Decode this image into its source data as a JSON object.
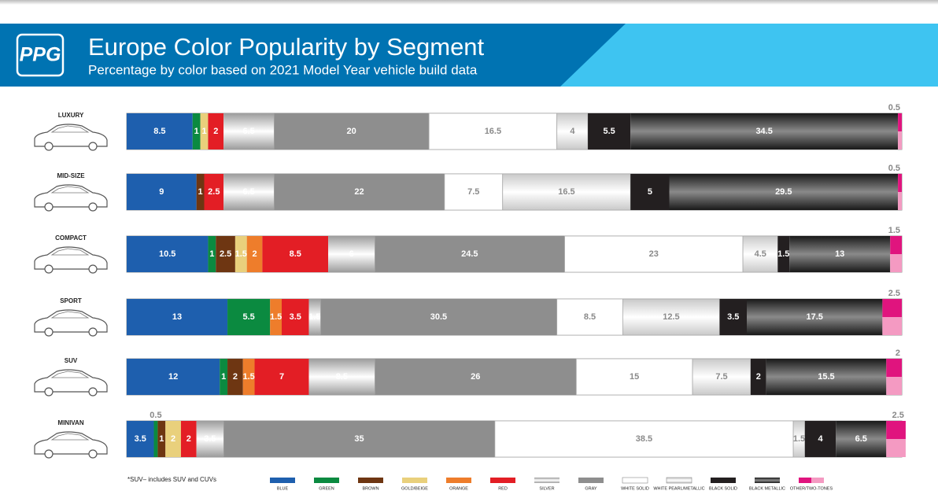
{
  "header": {
    "logo": "PPG"
  },
  "chart_data": {
    "type": "stacked-bar-horizontal",
    "title": "Europe Color Popularity by Segment",
    "subtitle": "Percentage by color based on 2021 Model Year vehicle build data",
    "footnote": "*SUV– includes SUV and CUVs",
    "categories": [
      "LUXURY",
      "MID-SIZE",
      "COMPACT",
      "SPORT",
      "SUV",
      "MINIVAN"
    ],
    "series": [
      {
        "name": "BLUE",
        "color": "#1e5fae",
        "values": [
          8.5,
          9,
          10.5,
          13,
          12,
          3.5
        ]
      },
      {
        "name": "GREEN",
        "color": "#0b8a40",
        "values": [
          1,
          null,
          1,
          5.5,
          1,
          0.5
        ]
      },
      {
        "name": "BROWN",
        "color": "#6e3612",
        "values": [
          null,
          1,
          2.5,
          null,
          2,
          1
        ]
      },
      {
        "name": "GOLD/BEIGE",
        "color": "#e9d07c",
        "values": [
          1,
          null,
          1.5,
          null,
          null,
          2
        ]
      },
      {
        "name": "ORANGE",
        "color": "#ee7d2b",
        "values": [
          null,
          null,
          2,
          1.5,
          1.5,
          null
        ]
      },
      {
        "name": "RED",
        "color": "#e31e25",
        "values": [
          2,
          2.5,
          8.5,
          3.5,
          7,
          2
        ]
      },
      {
        "name": "SILVER",
        "color": "#b8b8b8",
        "metallic": true,
        "values": [
          6.5,
          6.5,
          6,
          1.5,
          8.5,
          3.5
        ]
      },
      {
        "name": "GRAY",
        "color": "#8e8e8e",
        "values": [
          20,
          22,
          24.5,
          30.5,
          26,
          35
        ]
      },
      {
        "name": "WHITE SOLID",
        "color": "#ffffff",
        "values": [
          16.5,
          7.5,
          23,
          8.5,
          15,
          38.5
        ]
      },
      {
        "name": "WHITE PEARL/METALLIC",
        "color": "#ececec",
        "metallic": true,
        "values": [
          4,
          16.5,
          4.5,
          12.5,
          7.5,
          1.5
        ]
      },
      {
        "name": "BLACK SOLID",
        "color": "#231f20",
        "values": [
          5.5,
          5,
          1.5,
          3.5,
          2,
          4
        ]
      },
      {
        "name": "BLACK METALLIC",
        "color": "#2a2a2a",
        "metallic": true,
        "values": [
          34.5,
          29.5,
          13,
          17.5,
          15.5,
          6.5
        ]
      },
      {
        "name": "OTHER/TWO-TONES",
        "color": "#e0147e",
        "color2": "#f49ac2",
        "values": [
          0.5,
          0.5,
          1.5,
          2.5,
          2,
          2.5
        ]
      }
    ],
    "xlim": [
      0,
      100
    ]
  }
}
